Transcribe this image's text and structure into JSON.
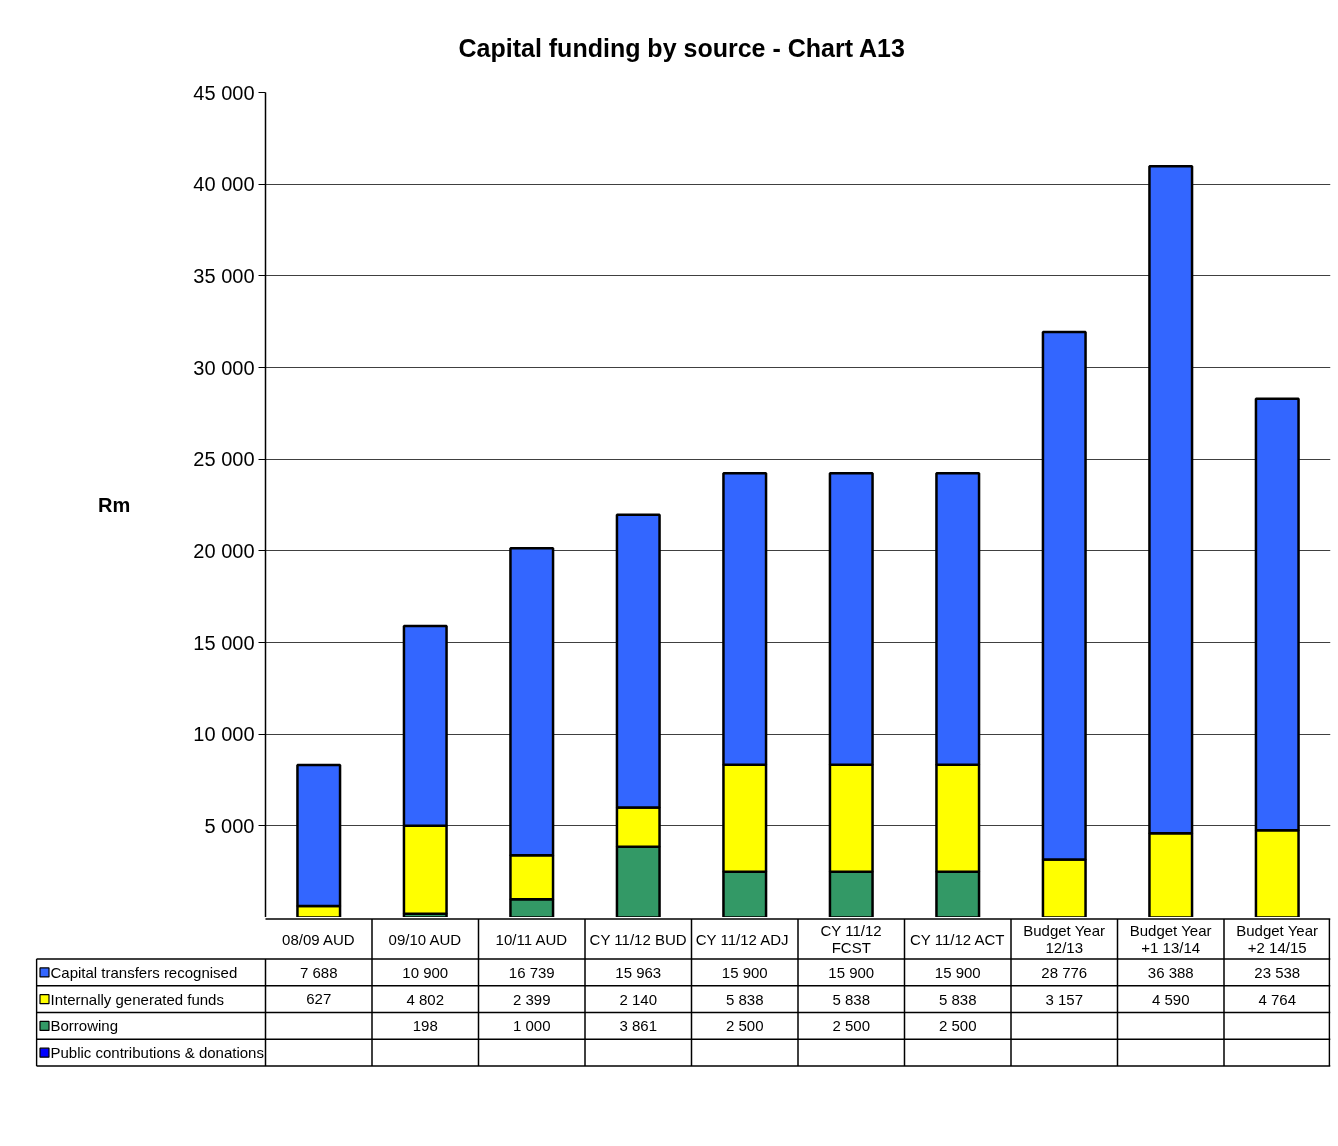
{
  "chart_data": {
    "type": "bar",
    "title": "Capital funding by source - Chart A13",
    "ylabel": "Rm",
    "categories": [
      "08/09 AUD",
      "09/10 AUD",
      "10/11 AUD",
      "CY 11/12 BUD",
      "CY  11/12 ADJ",
      "CY 11/12\nFCST",
      "CY 11/12 ACT",
      "Budget Year\n12/13",
      "Budget Year\n+1 13/14",
      "Budget Year\n+2 14/15"
    ],
    "stacked": true,
    "series": [
      {
        "name": "Public contributions & donations",
        "color": "#0000ff",
        "values": [
          null,
          null,
          null,
          null,
          null,
          null,
          null,
          null,
          null,
          null
        ]
      },
      {
        "name": "Borrowing",
        "color": "#339966",
        "values": [
          null,
          198,
          1000,
          3861,
          2500,
          2500,
          2500,
          null,
          null,
          null
        ]
      },
      {
        "name": "Internally generated funds",
        "color": "#ffff00",
        "values": [
          627,
          4802,
          2399,
          2140,
          5838,
          5838,
          5838,
          3157,
          4590,
          4764
        ]
      },
      {
        "name": "Capital transfers recognised",
        "color": "#3366ff",
        "values": [
          7688,
          10900,
          16739,
          15963,
          15900,
          15900,
          15900,
          28776,
          36388,
          23538
        ]
      }
    ],
    "ylim": [
      0,
      45000
    ],
    "yticks": [
      {
        "value": 5000,
        "label": "5 000"
      },
      {
        "value": 10000,
        "label": "10 000"
      },
      {
        "value": 15000,
        "label": "15 000"
      },
      {
        "value": 20000,
        "label": "20 000"
      },
      {
        "value": 25000,
        "label": "25 000"
      },
      {
        "value": 30000,
        "label": "30 000"
      },
      {
        "value": 35000,
        "label": "35 000"
      },
      {
        "value": 40000,
        "label": "40 000"
      },
      {
        "value": 45000,
        "label": "45 000"
      }
    ],
    "grid": "y",
    "legend": "bottom",
    "data_labels": true
  }
}
